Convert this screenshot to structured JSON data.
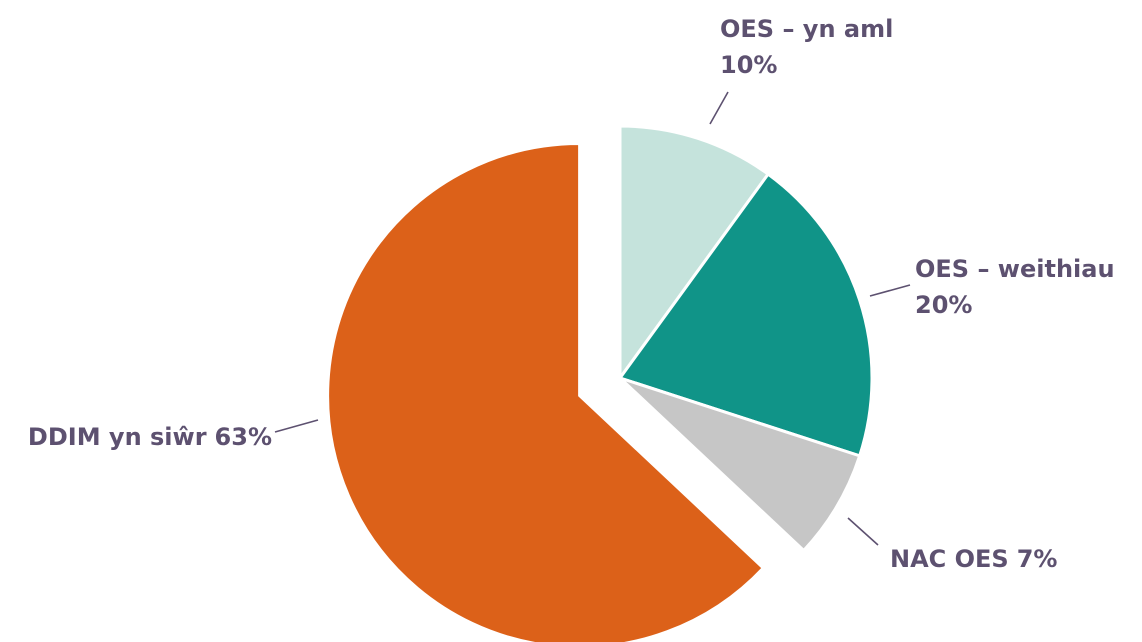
{
  "chart_data": {
    "type": "pie",
    "categories": [
      "OES – yn aml",
      "OES – weithiau",
      "NAC OES",
      "DDIM yn siŵr"
    ],
    "values": [
      10,
      20,
      7,
      63
    ],
    "value_labels": [
      "10%",
      "20%",
      "7%",
      "63%"
    ],
    "colors": [
      "#c5e3dc",
      "#109488",
      "#c6c6c6",
      "#dc6119"
    ],
    "explode": [
      false,
      false,
      false,
      true
    ]
  }
}
